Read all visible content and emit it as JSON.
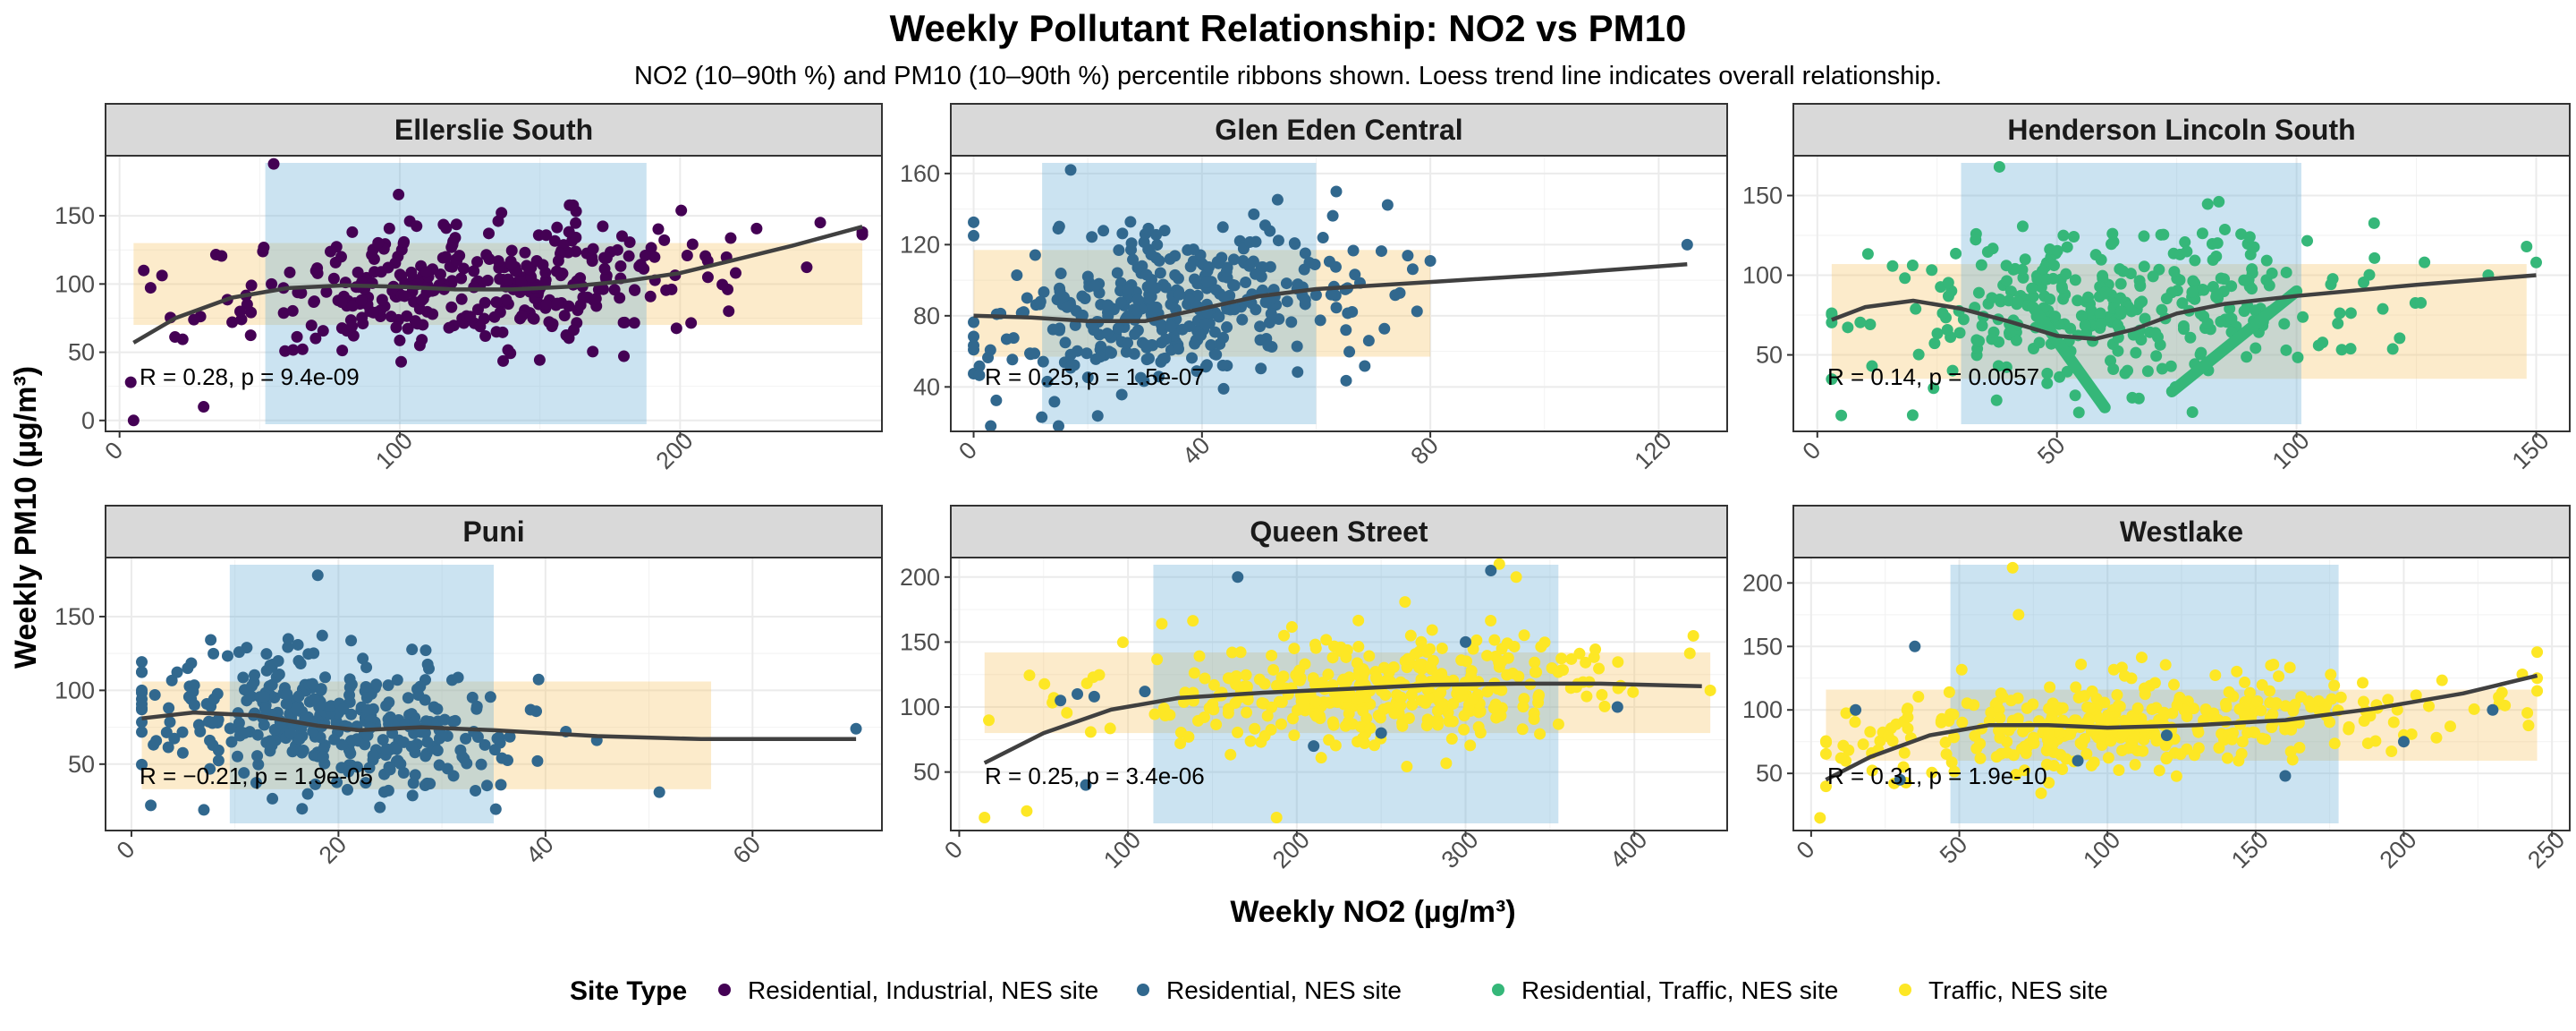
{
  "chart_data": {
    "type": "scatter",
    "title": "Weekly Pollutant Relationship: NO2 vs PM10",
    "subtitle": "NO2 (10–90th %) and PM10 (10–90th %) percentile ribbons shown. Loess trend line indicates overall relationship.",
    "xlabel": "Weekly NO2 (µg/m³)",
    "ylabel": "Weekly PM10 (µg/m³)",
    "grid": true,
    "legend": {
      "title": "Site Type",
      "position": "bottom",
      "items": [
        {
          "label": "Residential, Industrial, NES site",
          "color": "#440154"
        },
        {
          "label": "Residential, NES site",
          "color": "#31688E"
        },
        {
          "label": "Residential, Traffic, NES site",
          "color": "#35B779"
        },
        {
          "label": "Traffic, NES site",
          "color": "#FDE725"
        }
      ]
    },
    "colors": {
      "no2_band": "#6BAED6",
      "pm10_band": "#F5C76B",
      "trend": "#404040",
      "strip_bg": "#D9D9D9",
      "grid": "#EBEBEB"
    },
    "panels": [
      {
        "site": "Ellerslie South",
        "site_type": "Residential, Industrial, NES site",
        "annotation": "R = 0.28, p = 9.4e-09",
        "xlim": [
          -5,
          272
        ],
        "ylim": [
          -8,
          194
        ],
        "xticks": [
          0,
          100,
          200
        ],
        "yticks": [
          0,
          50,
          100,
          150
        ],
        "no2_band": [
          52,
          188
        ],
        "pm10_band": [
          70,
          130
        ],
        "trend": [
          [
            5,
            57
          ],
          [
            20,
            75
          ],
          [
            40,
            90
          ],
          [
            60,
            97
          ],
          [
            80,
            99
          ],
          [
            100,
            98
          ],
          [
            120,
            96
          ],
          [
            140,
            96
          ],
          [
            160,
            98
          ],
          [
            180,
            102
          ],
          [
            200,
            108
          ],
          [
            220,
            118
          ],
          [
            240,
            128
          ],
          [
            265,
            142
          ]
        ],
        "n_points": 360,
        "x_center": 125,
        "x_spread": 46,
        "x_range": [
          5,
          265
        ],
        "y_center": 100,
        "y_spread": 23,
        "y_range": [
          0,
          188
        ],
        "slope": 0.15,
        "extra_points": [
          [
            5,
            0
          ],
          [
            4,
            28
          ],
          [
            30,
            10
          ],
          [
            55,
            188
          ],
          [
            265,
            138
          ],
          [
            250,
            145
          ]
        ]
      },
      {
        "site": "Glen Eden Central",
        "site_type": "Residential, NES site",
        "annotation": "R = 0.25, p = 1.5e-07",
        "xlim": [
          -4,
          132
        ],
        "ylim": [
          15,
          170
        ],
        "xticks": [
          0,
          40,
          80,
          120
        ],
        "yticks": [
          40,
          80,
          120,
          160
        ],
        "no2_band": [
          12,
          60
        ],
        "pm10_band": [
          57,
          117
        ],
        "trend": [
          [
            0,
            80
          ],
          [
            10,
            79
          ],
          [
            20,
            77
          ],
          [
            30,
            77
          ],
          [
            40,
            84
          ],
          [
            50,
            91
          ],
          [
            60,
            95
          ],
          [
            80,
            99
          ],
          [
            100,
            103
          ],
          [
            125,
            109
          ]
        ],
        "n_points": 380,
        "x_center": 35,
        "x_spread": 16,
        "x_range": [
          0,
          80
        ],
        "y_center": 85,
        "y_spread": 22,
        "y_range": [
          18,
          162
        ],
        "slope": 0.3,
        "extra_points": [
          [
            125,
            120
          ],
          [
            17,
            162
          ],
          [
            0,
            125
          ],
          [
            3,
            18
          ]
        ]
      },
      {
        "site": "Henderson Lincoln South",
        "site_type": "Residential, Traffic, NES site",
        "annotation": "R = 0.14, p = 0.0057",
        "xlim": [
          -5,
          157
        ],
        "ylim": [
          2,
          175
        ],
        "xticks": [
          0,
          50,
          100,
          150
        ],
        "yticks": [
          50,
          100,
          150
        ],
        "no2_band": [
          30,
          101
        ],
        "pm10_band": [
          35,
          107
        ],
        "trend": [
          [
            3,
            72
          ],
          [
            10,
            80
          ],
          [
            20,
            84
          ],
          [
            30,
            79
          ],
          [
            40,
            71
          ],
          [
            50,
            62
          ],
          [
            58,
            60
          ],
          [
            66,
            66
          ],
          [
            75,
            76
          ],
          [
            85,
            82
          ],
          [
            100,
            87
          ],
          [
            125,
            94
          ],
          [
            150,
            100
          ]
        ],
        "n_points": 330,
        "x_center": 62,
        "x_spread": 26,
        "x_range": [
          3,
          148
        ],
        "y_center": 80,
        "y_spread": 25,
        "y_range": [
          5,
          168
        ],
        "slope": 0.1,
        "extra_points": [
          [
            38,
            168
          ],
          [
            5,
            12
          ],
          [
            148,
            118
          ],
          [
            150,
            108
          ],
          [
            140,
            100
          ]
        ],
        "thick_segments": [
          [
            [
              45,
              80
            ],
            [
              60,
              17
            ]
          ],
          [
            [
              74,
              27
            ],
            [
              100,
              90
            ]
          ]
        ]
      },
      {
        "site": "Puni",
        "site_type": "Residential, NES site",
        "annotation": "R = −0.21, p = 1.9e-05",
        "xlim": [
          -2.5,
          72.5
        ],
        "ylim": [
          5,
          190
        ],
        "xticks": [
          0,
          20,
          40,
          60
        ],
        "yticks": [
          50,
          100,
          150
        ],
        "no2_band": [
          9.5,
          35
        ],
        "pm10_band": [
          33,
          106
        ],
        "trend": [
          [
            1,
            81
          ],
          [
            6,
            85
          ],
          [
            12,
            83
          ],
          [
            18,
            76
          ],
          [
            22,
            73
          ],
          [
            28,
            75
          ],
          [
            35,
            73
          ],
          [
            45,
            69
          ],
          [
            55,
            67
          ],
          [
            70,
            67
          ]
        ],
        "n_points": 370,
        "x_center": 20,
        "x_spread": 9,
        "x_range": [
          1,
          56
        ],
        "y_center": 80,
        "y_spread": 22,
        "y_range": [
          18,
          178
        ],
        "slope": -0.7,
        "extra_points": [
          [
            18,
            178
          ],
          [
            70,
            74
          ],
          [
            1,
            100
          ],
          [
            7,
            19
          ],
          [
            51,
            31
          ]
        ]
      },
      {
        "site": "Queen Street",
        "site_type": "Traffic, NES site",
        "annotation": "R = 0.25, p = 3.4e-06",
        "xlim": [
          -5,
          455
        ],
        "ylim": [
          5,
          215
        ],
        "xticks": [
          0,
          100,
          200,
          300,
          400
        ],
        "yticks": [
          50,
          100,
          150,
          200
        ],
        "no2_band": [
          115,
          355
        ],
        "pm10_band": [
          80,
          142
        ],
        "trend": [
          [
            15,
            57
          ],
          [
            50,
            80
          ],
          [
            90,
            98
          ],
          [
            130,
            107
          ],
          [
            180,
            111
          ],
          [
            230,
            114
          ],
          [
            280,
            117
          ],
          [
            330,
            118
          ],
          [
            380,
            118
          ],
          [
            440,
            116
          ]
        ],
        "n_points": 370,
        "x_center": 250,
        "x_spread": 78,
        "x_range": [
          15,
          445
        ],
        "y_center": 112,
        "y_spread": 20,
        "y_range": [
          15,
          210
        ],
        "slope": 0.06,
        "extra_points": [
          [
            15,
            15
          ],
          [
            188,
            15
          ],
          [
            320,
            210
          ],
          [
            330,
            200
          ],
          [
            40,
            20
          ]
        ],
        "dark_points": [
          [
            70,
            110
          ],
          [
            80,
            108
          ],
          [
            60,
            105
          ],
          [
            75,
            40
          ],
          [
            165,
            200
          ],
          [
            315,
            205
          ],
          [
            300,
            150
          ],
          [
            250,
            80
          ],
          [
            210,
            70
          ],
          [
            110,
            112
          ],
          [
            390,
            100
          ]
        ]
      },
      {
        "site": "Westlake",
        "site_type": "Traffic, NES site",
        "annotation": "R = 0.31, p = 1.9e-10",
        "xlim": [
          -6,
          256
        ],
        "ylim": [
          5,
          220
        ],
        "xticks": [
          0,
          50,
          100,
          150,
          200,
          250
        ],
        "yticks": [
          50,
          100,
          150,
          200
        ],
        "no2_band": [
          47,
          178
        ],
        "pm10_band": [
          60,
          116
        ],
        "trend": [
          [
            5,
            45
          ],
          [
            20,
            63
          ],
          [
            40,
            80
          ],
          [
            60,
            88
          ],
          [
            80,
            88
          ],
          [
            100,
            86
          ],
          [
            130,
            88
          ],
          [
            160,
            92
          ],
          [
            190,
            101
          ],
          [
            220,
            113
          ],
          [
            245,
            127
          ]
        ],
        "n_points": 380,
        "x_center": 105,
        "x_spread": 48,
        "x_range": [
          5,
          245
        ],
        "y_center": 88,
        "y_spread": 18,
        "y_range": [
          15,
          212
        ],
        "slope": 0.15,
        "extra_points": [
          [
            68,
            212
          ],
          [
            70,
            175
          ],
          [
            245,
            125
          ],
          [
            240,
            128
          ],
          [
            3,
            15
          ]
        ],
        "dark_points": [
          [
            35,
            150
          ],
          [
            15,
            100
          ],
          [
            30,
            45
          ],
          [
            160,
            48
          ],
          [
            200,
            75
          ],
          [
            230,
            100
          ],
          [
            120,
            80
          ],
          [
            90,
            60
          ]
        ]
      }
    ]
  }
}
